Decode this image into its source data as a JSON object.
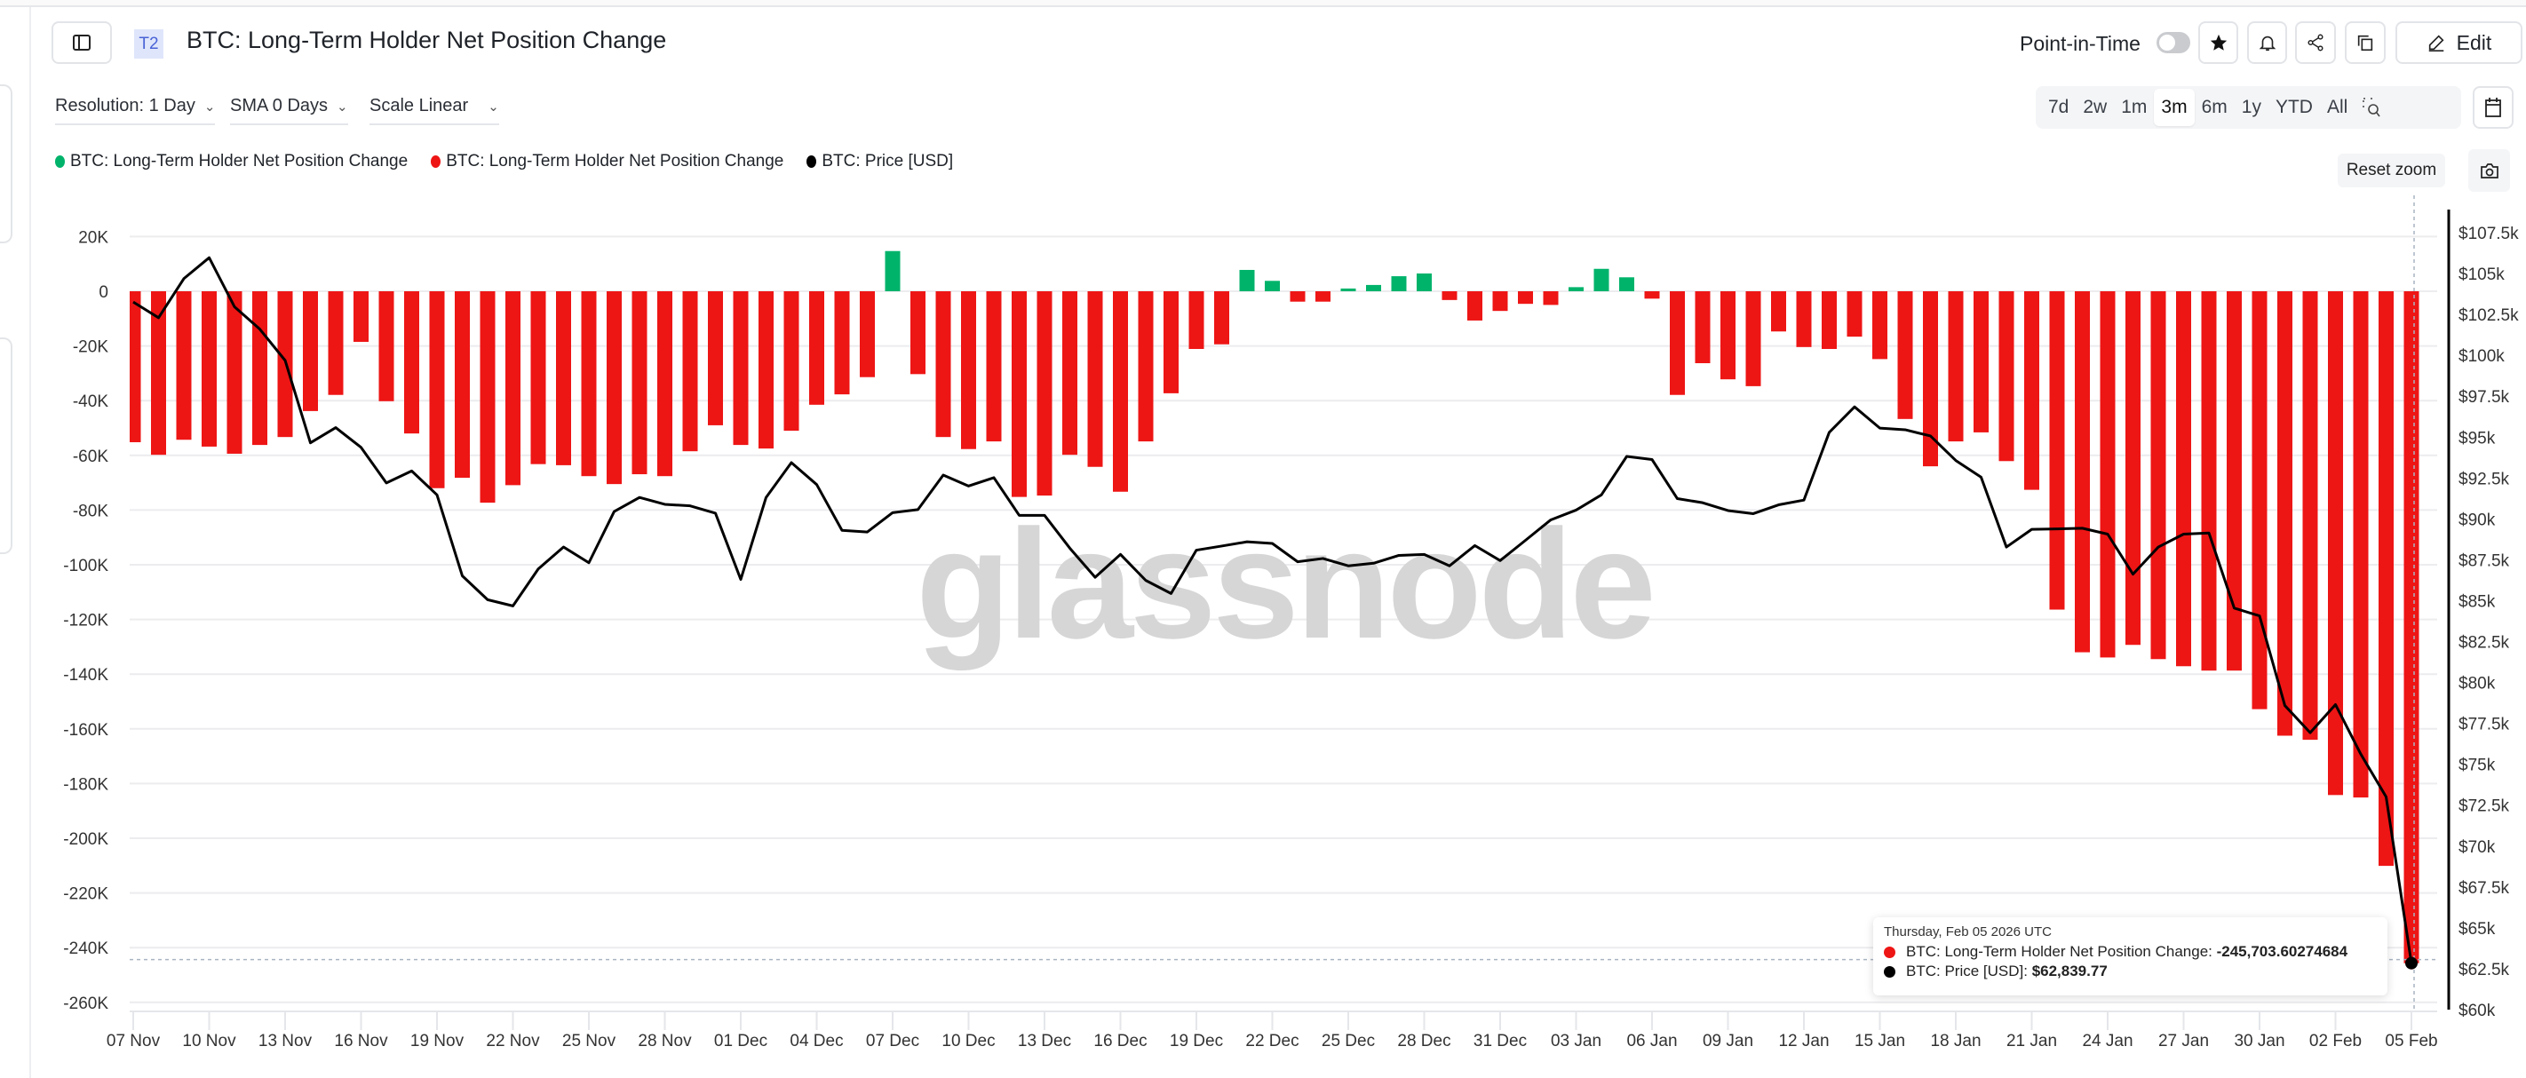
{
  "header": {
    "badge": "T2",
    "title": "BTC: Long-Term Holder Net Position Change",
    "point_in_time_label": "Point-in-Time",
    "point_in_time_on": false,
    "edit_label": "Edit",
    "icons": [
      "sidebar-toggle-icon",
      "star-icon",
      "bell-icon",
      "share-icon",
      "copy-icon",
      "pencil-icon"
    ]
  },
  "controls": {
    "resolution": "Resolution: 1 Day",
    "sma": "SMA 0 Days",
    "scale": "Scale Linear",
    "ranges": [
      "7d",
      "2w",
      "1m",
      "3m",
      "6m",
      "1y",
      "YTD",
      "All"
    ],
    "active_range": "3m",
    "reset_zoom": "Reset zoom"
  },
  "legend": [
    {
      "label": "BTC: Long-Term Holder Net Position Change",
      "color": "#00b36b"
    },
    {
      "label": "BTC: Long-Term Holder Net Position Change",
      "color": "#ee1515"
    },
    {
      "label": "BTC: Price [USD]",
      "color": "#000000"
    }
  ],
  "tooltip": {
    "date": "Thursday, Feb 05 2026 UTC",
    "series1_label": "BTC: Long-Term Holder Net Position Change: ",
    "series1_value": "-245,703.60274684",
    "series2_label": "BTC: Price [USD]: ",
    "series2_value": "$62,839.77"
  },
  "watermark": "glassnode",
  "chart_data": {
    "type": "bar+line",
    "x_start": "2025-11-07",
    "x_end": "2026-02-05",
    "x_tick_labels": [
      "07 Nov",
      "10 Nov",
      "13 Nov",
      "16 Nov",
      "19 Nov",
      "22 Nov",
      "25 Nov",
      "28 Nov",
      "01 Dec",
      "04 Dec",
      "07 Dec",
      "10 Dec",
      "13 Dec",
      "16 Dec",
      "19 Dec",
      "22 Dec",
      "25 Dec",
      "28 Dec",
      "31 Dec",
      "03 Jan",
      "06 Jan",
      "09 Jan",
      "12 Jan",
      "15 Jan",
      "18 Jan",
      "21 Jan",
      "24 Jan",
      "27 Jan",
      "30 Jan",
      "02 Feb",
      "05 Feb"
    ],
    "left_axis": {
      "ticks": [
        "20K",
        "0",
        "-20K",
        "-40K",
        "-60K",
        "-80K",
        "-100K",
        "-120K",
        "-140K",
        "-160K",
        "-180K",
        "-200K",
        "-220K",
        "-240K",
        "-260K"
      ],
      "range": [
        -260,
        20
      ],
      "unit": "K"
    },
    "right_axis": {
      "ticks": [
        "$107.5k",
        "$105k",
        "$102.5k",
        "$100k",
        "$97.5k",
        "$95k",
        "$92.5k",
        "$90k",
        "$87.5k",
        "$85k",
        "$82.5k",
        "$80k",
        "$77.5k",
        "$75k",
        "$72.5k",
        "$70k",
        "$67.5k",
        "$65k",
        "$62.5k",
        "$60k"
      ],
      "range": [
        60,
        107.5
      ],
      "unit": "$k"
    },
    "positive_color": "#00b36b",
    "negative_color": "#ee1515",
    "price_color": "#000000",
    "grid": true,
    "net_position_change_k": [
      -55.2,
      -59.8,
      -54.3,
      -56.8,
      -59.4,
      -56.2,
      -53.3,
      -43.8,
      -37.9,
      -18.5,
      -40.2,
      -52,
      -72,
      -68.2,
      -77.3,
      -70.9,
      -63.2,
      -63.6,
      -67.6,
      -70.5,
      -66.9,
      -67.6,
      -58.5,
      -49,
      -56.2,
      -57.5,
      -51,
      -41.5,
      -37.7,
      -31.4,
      14.7,
      -30.3,
      -53.3,
      -57.7,
      -54.9,
      -75.2,
      -74.7,
      -59.8,
      -64.2,
      -73.3,
      -54.9,
      -37.3,
      -21.1,
      -19.4,
      7.8,
      3.8,
      -3.8,
      -3.8,
      1.0,
      2.3,
      5.5,
      6.5,
      -3.2,
      -10.7,
      -7.2,
      -4.6,
      -5.0,
      1.5,
      8.2,
      5.1,
      -2.7,
      -37.9,
      -26.3,
      -32.2,
      -34.7,
      -14.7,
      -20.4,
      -21.1,
      -16.6,
      -24.8,
      -46.7,
      -64.0,
      -54.9,
      -51.6,
      -62.1,
      -72.6,
      -116.4,
      -132.0,
      -133.9,
      -129.3,
      -134.5,
      -137.1,
      -138.7,
      -138.7,
      -152.8,
      -162.5,
      -164.0,
      -184.2,
      -185.1,
      -210.1,
      -245.7
    ],
    "price_k": [
      103.26,
      102.3,
      104.69,
      105.97,
      102.97,
      101.6,
      99.69,
      94.65,
      95.58,
      94.37,
      92.2,
      92.93,
      91.47,
      86.52,
      85.06,
      84.68,
      86.94,
      88.28,
      87.32,
      90.45,
      91.31,
      90.89,
      90.8,
      90.35,
      86.3,
      91.31,
      93.44,
      92.1,
      89.3,
      89.2,
      90.38,
      90.57,
      92.68,
      92.01,
      92.52,
      90.22,
      90.22,
      88.21,
      86.43,
      87.83,
      86.24,
      85.44,
      88.09,
      88.34,
      88.6,
      88.5,
      87.38,
      87.58,
      87.13,
      87.29,
      87.77,
      87.83,
      87.13,
      88.37,
      87.45,
      88.69,
      89.94,
      90.54,
      91.47,
      93.82,
      93.63,
      91.24,
      90.99,
      90.51,
      90.32,
      90.86,
      91.15,
      95.29,
      96.85,
      95.55,
      95.45,
      95.07,
      93.57,
      92.55,
      88.28,
      89.36,
      89.39,
      89.43,
      89.07,
      86.62,
      88.28,
      89.07,
      89.14,
      84.55,
      84.07,
      78.59,
      76.93,
      78.65,
      75.62,
      73.01,
      62.84
    ]
  }
}
